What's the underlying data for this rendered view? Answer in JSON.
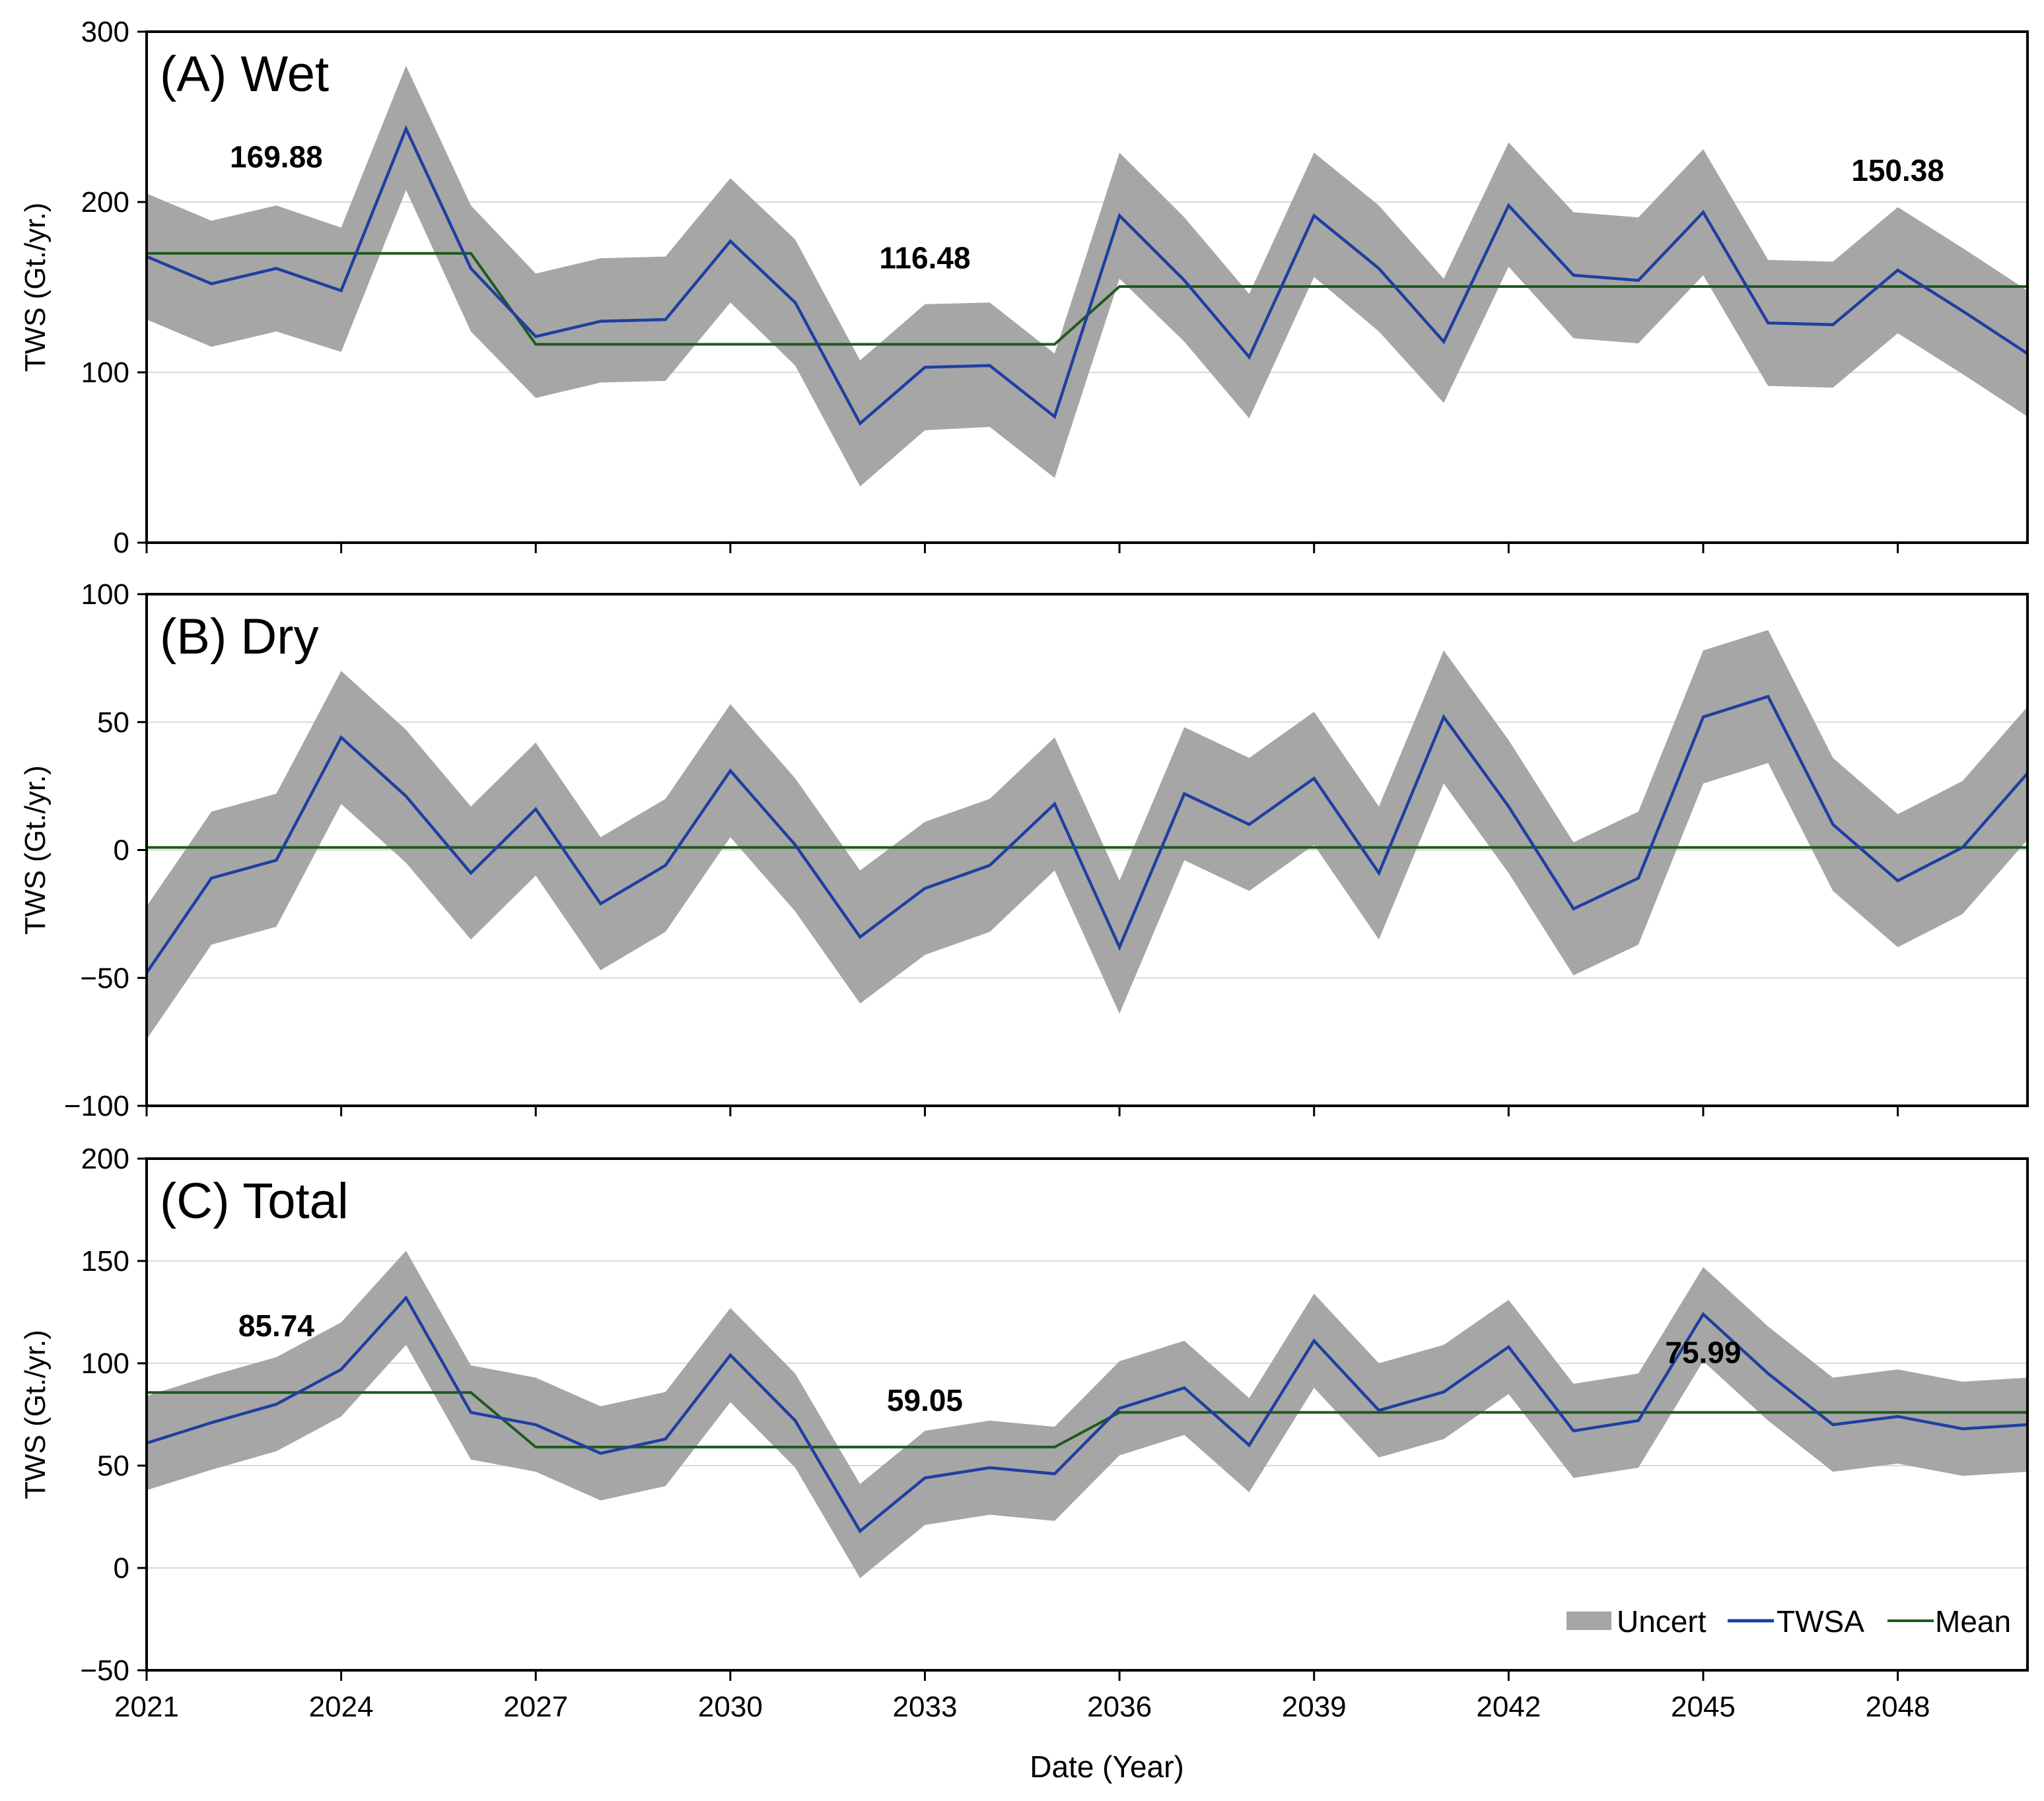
{
  "chart_data": [
    {
      "type": "line",
      "title": "(A) Wet",
      "ylabel": "TWS (Gt./yr.)",
      "xlabel": "",
      "ylim": [
        0,
        300
      ],
      "yticks": [
        0,
        100,
        200,
        300
      ],
      "grid": true,
      "x": [
        2021,
        2022,
        2023,
        2024,
        2025,
        2026,
        2027,
        2028,
        2029,
        2030,
        2031,
        2032,
        2033,
        2034,
        2035,
        2036,
        2037,
        2038,
        2039,
        2040,
        2041,
        2042,
        2043,
        2044,
        2045,
        2046,
        2047,
        2048,
        2049,
        2050
      ],
      "series": [
        {
          "name": "TWSA",
          "values": [
            168,
            152,
            161,
            148,
            243,
            161,
            121,
            130,
            131,
            177,
            141,
            70,
            103,
            104,
            74,
            192,
            154,
            109,
            192,
            161,
            118,
            198,
            157,
            154,
            194,
            129,
            128,
            160,
            136,
            111
          ]
        },
        {
          "name": "Uncert",
          "kind": "band",
          "lower": [
            131,
            115,
            124,
            112,
            207,
            124,
            85,
            94,
            95,
            141,
            104,
            33,
            66,
            68,
            38,
            155,
            118,
            73,
            156,
            124,
            82,
            162,
            120,
            117,
            157,
            92,
            91,
            123,
            99,
            74
          ],
          "upper": [
            205,
            189,
            198,
            185,
            280,
            198,
            158,
            167,
            168,
            214,
            178,
            107,
            140,
            141,
            111,
            229,
            191,
            146,
            229,
            198,
            155,
            235,
            194,
            191,
            231,
            166,
            165,
            197,
            173,
            148
          ]
        },
        {
          "name": "Mean",
          "segments": [
            {
              "from": 2021,
              "to": 2026,
              "value": 169.88,
              "label": "169.88"
            },
            {
              "from": 2027,
              "to": 2035,
              "value": 116.48,
              "label": "116.48"
            },
            {
              "from": 2036,
              "to": 2050,
              "value": 150.38,
              "label": "150.38"
            }
          ]
        }
      ]
    },
    {
      "type": "line",
      "title": "(B) Dry",
      "ylabel": "TWS (Gt./yr.)",
      "xlabel": "",
      "ylim": [
        -100,
        100
      ],
      "yticks": [
        -100,
        -50,
        0,
        50,
        100
      ],
      "grid": true,
      "x": [
        2021,
        2022,
        2023,
        2024,
        2025,
        2026,
        2027,
        2028,
        2029,
        2030,
        2031,
        2032,
        2033,
        2034,
        2035,
        2036,
        2037,
        2038,
        2039,
        2040,
        2041,
        2042,
        2043,
        2044,
        2045,
        2046,
        2047,
        2048,
        2049,
        2050
      ],
      "series": [
        {
          "name": "TWSA",
          "values": [
            -48,
            -11,
            -4,
            44,
            21,
            -9,
            16,
            -21,
            -6,
            31,
            2,
            -34,
            -15,
            -6,
            18,
            -38,
            22,
            10,
            28,
            -9,
            52,
            17,
            -23,
            -11,
            52,
            60,
            10,
            -12,
            1,
            30
          ]
        },
        {
          "name": "Uncert",
          "kind": "band",
          "lower": [
            -74,
            -37,
            -30,
            18,
            -5,
            -35,
            -10,
            -47,
            -32,
            5,
            -24,
            -60,
            -41,
            -32,
            -8,
            -64,
            -4,
            -16,
            2,
            -35,
            26,
            -9,
            -49,
            -37,
            26,
            34,
            -16,
            -38,
            -25,
            4
          ],
          "upper": [
            -22,
            15,
            22,
            70,
            47,
            17,
            42,
            5,
            20,
            57,
            28,
            -8,
            11,
            20,
            44,
            -12,
            48,
            36,
            54,
            17,
            78,
            43,
            3,
            15,
            78,
            86,
            36,
            14,
            27,
            56
          ]
        },
        {
          "name": "Mean",
          "segments": [
            {
              "from": 2021,
              "to": 2050,
              "value": 1,
              "label": ""
            }
          ]
        }
      ]
    },
    {
      "type": "line",
      "title": "(C) Total",
      "ylabel": "TWS (Gt./yr.)",
      "xlabel": "Date (Year)",
      "ylim": [
        -50,
        200
      ],
      "yticks": [
        -50,
        0,
        50,
        100,
        150,
        200
      ],
      "xticks": [
        2021,
        2024,
        2027,
        2030,
        2033,
        2036,
        2039,
        2042,
        2045,
        2048
      ],
      "grid": true,
      "x": [
        2021,
        2022,
        2023,
        2024,
        2025,
        2026,
        2027,
        2028,
        2029,
        2030,
        2031,
        2032,
        2033,
        2034,
        2035,
        2036,
        2037,
        2038,
        2039,
        2040,
        2041,
        2042,
        2043,
        2044,
        2045,
        2046,
        2047,
        2048,
        2049,
        2050
      ],
      "series": [
        {
          "name": "TWSA",
          "values": [
            61,
            71,
            80,
            97,
            132,
            76,
            70,
            56,
            63,
            104,
            72,
            18,
            44,
            49,
            46,
            78,
            88,
            60,
            111,
            77,
            86,
            108,
            67,
            72,
            124,
            95,
            70,
            74,
            68,
            70
          ]
        },
        {
          "name": "Uncert",
          "kind": "band",
          "lower": [
            38,
            48,
            57,
            74,
            109,
            53,
            47,
            33,
            40,
            81,
            49,
            -5,
            21,
            26,
            23,
            55,
            65,
            37,
            88,
            54,
            63,
            85,
            44,
            49,
            101,
            72,
            47,
            51,
            45,
            47
          ],
          "upper": [
            84,
            94,
            103,
            120,
            155,
            99,
            93,
            79,
            86,
            127,
            95,
            41,
            67,
            72,
            69,
            101,
            111,
            83,
            134,
            100,
            109,
            131,
            90,
            95,
            147,
            118,
            93,
            97,
            91,
            93
          ]
        },
        {
          "name": "Mean",
          "segments": [
            {
              "from": 2021,
              "to": 2026,
              "value": 85.74,
              "label": "85.74"
            },
            {
              "from": 2027,
              "to": 2035,
              "value": 59.05,
              "label": "59.05"
            },
            {
              "from": 2036,
              "to": 2050,
              "value": 75.99,
              "label": "75.99"
            }
          ]
        }
      ]
    }
  ],
  "legend": {
    "placement": "bottom-right",
    "items": [
      {
        "label": "Uncert",
        "color": "#a6a6a6"
      },
      {
        "label": "TWSA",
        "color": "#1f3fa0"
      },
      {
        "label": "Mean",
        "color": "#1e5a1e"
      }
    ]
  },
  "colors": {
    "band": "#a6a6a6",
    "twsa": "#1f3fa0",
    "mean": "#1e5a1e",
    "grid": "#d9d9d9"
  }
}
